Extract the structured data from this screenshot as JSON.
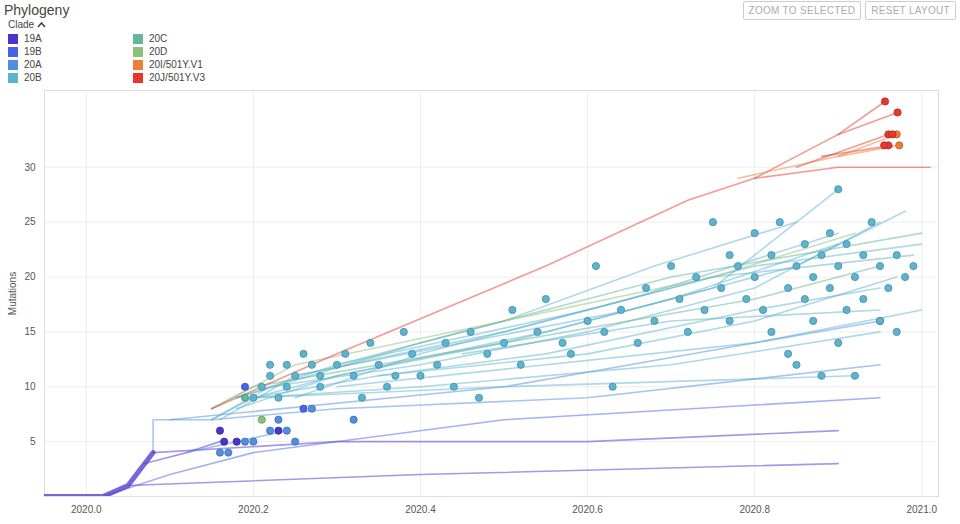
{
  "chart_data": {
    "type": "scatter",
    "title": "Phylogeny",
    "buttons": [
      "ZOOM TO SELECTED",
      "RESET LAYOUT"
    ],
    "legend_title": "Clade",
    "legend": "top-left",
    "grid": true,
    "y_label": "Mutations",
    "xlim": [
      2019.95,
      2021.02
    ],
    "xticks": [
      {
        "value": 2020,
        "label": "2020.0"
      },
      2020.2,
      2020.4,
      2020.6,
      2020.8,
      {
        "value": 2021,
        "label": "2021.0"
      }
    ],
    "ylim": [
      0,
      37
    ],
    "yticks": [
      5,
      10,
      15,
      20,
      25,
      30
    ],
    "series": [
      {
        "name": "19A",
        "color": "#4b33cc",
        "x": [
          2020.16,
          2020.165,
          2020.18,
          2020.23
        ],
        "values": [
          6,
          5,
          5,
          6
        ]
      },
      {
        "name": "19B",
        "color": "#4a63e6",
        "x": [
          2020.19,
          2020.26
        ],
        "values": [
          10,
          8
        ]
      },
      {
        "name": "20A",
        "color": "#4f8ee0",
        "x": [
          2020.16,
          2020.17,
          2020.19,
          2020.2,
          2020.22,
          2020.23,
          2020.24,
          2020.25,
          2020.27,
          2020.32,
          2020.95
        ],
        "values": [
          4,
          4,
          5,
          5,
          6,
          7,
          6,
          5,
          8,
          7,
          16
        ]
      },
      {
        "name": "20B",
        "color": "#5cb4d0",
        "x": [
          2020.2,
          2020.21,
          2020.22,
          2020.22,
          2020.23,
          2020.24,
          2020.24,
          2020.25,
          2020.26,
          2020.27,
          2020.28,
          2020.28,
          2020.3,
          2020.31,
          2020.32,
          2020.33,
          2020.34,
          2020.35,
          2020.36,
          2020.37,
          2020.38,
          2020.39,
          2020.4,
          2020.42,
          2020.43,
          2020.44,
          2020.46,
          2020.47,
          2020.48,
          2020.5,
          2020.51,
          2020.52,
          2020.54,
          2020.55,
          2020.57,
          2020.58,
          2020.6,
          2020.61,
          2020.62,
          2020.63,
          2020.64,
          2020.66,
          2020.67,
          2020.68,
          2020.7,
          2020.71,
          2020.72,
          2020.73,
          2020.74,
          2020.75,
          2020.76,
          2020.77,
          2020.77,
          2020.78,
          2020.79,
          2020.8,
          2020.8,
          2020.81,
          2020.82,
          2020.82,
          2020.83,
          2020.84,
          2020.84,
          2020.85,
          2020.85,
          2020.86,
          2020.86,
          2020.87,
          2020.87,
          2020.88,
          2020.88,
          2020.89,
          2020.89,
          2020.9,
          2020.9,
          2020.9,
          2020.91,
          2020.91,
          2020.92,
          2020.92,
          2020.93,
          2020.93,
          2020.94,
          2020.95,
          2020.95,
          2020.96,
          2020.97,
          2020.97,
          2020.98,
          2020.99
        ],
        "values": [
          9,
          10,
          11,
          12,
          9,
          10,
          12,
          11,
          13,
          12,
          11,
          10,
          12,
          13,
          11,
          9,
          14,
          12,
          10,
          11,
          15,
          13,
          11,
          12,
          14,
          10,
          15,
          9,
          13,
          14,
          17,
          12,
          15,
          18,
          14,
          13,
          16,
          21,
          15,
          10,
          17,
          14,
          19,
          16,
          21,
          18,
          15,
          20,
          17,
          25,
          19,
          22,
          16,
          21,
          18,
          20,
          24,
          17,
          22,
          15,
          25,
          19,
          13,
          21,
          12,
          23,
          18,
          20,
          16,
          22,
          11,
          19,
          24,
          28,
          21,
          14,
          17,
          23,
          20,
          11,
          22,
          18,
          25,
          16,
          21,
          19,
          22,
          15,
          20,
          21
        ]
      },
      {
        "name": "20C",
        "color": "#63b59b",
        "x": [
          2020.19
        ],
        "values": [
          9
        ]
      },
      {
        "name": "20D",
        "color": "#8cc17c",
        "x": [
          2020.21
        ],
        "values": [
          7
        ]
      },
      {
        "name": "20I/501Y.V1",
        "color": "#ec7f38",
        "x": [
          2020.973,
          2020.97
        ],
        "values": [
          32,
          33
        ]
      },
      {
        "name": "20J/501Y.V3",
        "color": "#e5372b",
        "x": [
          2020.956,
          2020.971,
          2020.96,
          2020.965,
          2020.96,
          2020.955
        ],
        "values": [
          36,
          35,
          33,
          33,
          32,
          32
        ]
      }
    ],
    "branches": [
      {
        "name": "19A",
        "x": [
          2019.95,
          2020.02,
          2020.05,
          2020.07,
          2020.08
        ],
        "values": [
          0,
          0,
          1,
          3,
          4
        ]
      },
      {
        "name": "19A",
        "x": [
          2020.07,
          2020.12,
          2020.16
        ],
        "values": [
          3,
          4,
          5
        ]
      },
      {
        "name": "19A",
        "x": [
          2020.08,
          2020.3,
          2020.6,
          2020.9
        ],
        "values": [
          4,
          5,
          5,
          6
        ]
      },
      {
        "name": "19A",
        "x": [
          2020.05,
          2020.4,
          2020.9
        ],
        "values": [
          1,
          2,
          3
        ]
      },
      {
        "name": "19B",
        "x": [
          2020.02,
          2020.1,
          2020.2,
          2020.5,
          2020.95
        ],
        "values": [
          0,
          2,
          4,
          7,
          9
        ]
      },
      {
        "name": "20A",
        "x": [
          2020.08,
          2020.08,
          2020.15
        ],
        "values": [
          4,
          7,
          7
        ]
      },
      {
        "name": "20A",
        "x": [
          2020.15,
          2020.3,
          2020.6,
          2020.95
        ],
        "values": [
          7,
          8,
          9,
          12
        ]
      },
      {
        "name": "20A",
        "x": [
          2020.12,
          2020.18,
          2020.24
        ],
        "values": [
          4,
          5,
          6
        ]
      },
      {
        "name": "20A",
        "x": [
          2020.1,
          2020.5,
          2020.95
        ],
        "values": [
          7,
          10,
          16
        ]
      },
      {
        "name": "20B",
        "x": [
          2020.15,
          2020.2,
          2020.3,
          2020.5,
          2020.7,
          2020.9
        ],
        "values": [
          7,
          9,
          11,
          14,
          18,
          23
        ]
      },
      {
        "name": "20B",
        "x": [
          2020.15,
          2020.22,
          2020.4,
          2020.6,
          2020.8,
          2020.95
        ],
        "values": [
          7,
          10,
          12,
          15,
          19,
          25
        ]
      },
      {
        "name": "20B",
        "x": [
          2020.16,
          2020.25,
          2020.45,
          2020.65,
          2020.85,
          2020.98
        ],
        "values": [
          7,
          11,
          14,
          17,
          21,
          26
        ]
      },
      {
        "name": "20B",
        "x": [
          2020.18,
          2020.3,
          2020.55,
          2020.75,
          2020.9
        ],
        "values": [
          8,
          11,
          15,
          19,
          28
        ]
      },
      {
        "name": "20B",
        "x": [
          2020.2,
          2020.35,
          2020.6,
          2020.8,
          2020.97
        ],
        "values": [
          9,
          11,
          13,
          16,
          20
        ]
      },
      {
        "name": "20B",
        "x": [
          2020.2,
          2020.4,
          2020.7,
          2020.95
        ],
        "values": [
          9,
          10,
          12,
          15
        ]
      },
      {
        "name": "20B",
        "x": [
          2020.2,
          2020.5,
          2020.92
        ],
        "values": [
          9,
          10,
          11
        ]
      },
      {
        "name": "20B",
        "x": [
          2020.25,
          2020.5,
          2020.75,
          2020.99
        ],
        "values": [
          11,
          15,
          20,
          22
        ]
      },
      {
        "name": "20B",
        "x": [
          2020.3,
          2020.6,
          2020.8,
          2021.0
        ],
        "values": [
          12,
          17,
          21,
          23
        ]
      },
      {
        "name": "20B",
        "x": [
          2020.18,
          2020.3,
          2020.5,
          2020.68,
          2020.85
        ],
        "values": [
          9,
          12,
          16,
          21,
          25
        ]
      },
      {
        "name": "20B",
        "x": [
          2020.35,
          2020.55,
          2020.8,
          2020.95
        ],
        "values": [
          11,
          13,
          17,
          19
        ]
      },
      {
        "name": "20B",
        "x": [
          2020.25,
          2020.4,
          2020.65,
          2020.9
        ],
        "values": [
          9,
          13,
          18,
          24
        ]
      },
      {
        "name": "20B",
        "x": [
          2020.45,
          2020.7,
          2020.95
        ],
        "values": [
          13,
          16,
          17
        ]
      },
      {
        "name": "20B",
        "x": [
          2020.3,
          2020.8,
          2021.0
        ],
        "values": [
          10,
          14,
          17
        ]
      },
      {
        "name": "20C",
        "x": [
          2020.15,
          2020.2,
          2020.5,
          2020.8,
          2020.95
        ],
        "values": [
          8,
          10,
          14,
          18,
          21
        ]
      },
      {
        "name": "20C",
        "x": [
          2020.18,
          2020.4,
          2020.7,
          2021.0
        ],
        "values": [
          9,
          14,
          20,
          24
        ]
      },
      {
        "name": "20D",
        "x": [
          2020.15,
          2020.25,
          2020.5,
          2020.75,
          2020.92
        ],
        "values": [
          8,
          12,
          16,
          20,
          24
        ]
      },
      {
        "name": "20J/501Y.V3",
        "x": [
          2020.15,
          2020.3,
          2020.55,
          2020.72,
          2020.8,
          2020.9,
          2020.956
        ],
        "values": [
          8,
          13,
          21,
          27,
          29,
          33,
          36
        ]
      },
      {
        "name": "20J/501Y.V3",
        "x": [
          2020.9,
          2020.971
        ],
        "values": [
          33,
          35
        ]
      },
      {
        "name": "20J/501Y.V3",
        "x": [
          2020.8,
          2020.9,
          2021.01
        ],
        "values": [
          29,
          30,
          30
        ]
      },
      {
        "name": "20J/501Y.V3",
        "x": [
          2020.85,
          2020.96
        ],
        "values": [
          30,
          33
        ]
      },
      {
        "name": "20J/501Y.V3",
        "x": [
          2020.88,
          2020.965
        ],
        "values": [
          31,
          32
        ]
      },
      {
        "name": "20I/501Y.V1",
        "x": [
          2020.78,
          2020.9,
          2020.97
        ],
        "values": [
          29,
          31,
          33
        ]
      },
      {
        "name": "20I/501Y.V1",
        "x": [
          2020.9,
          2020.973
        ],
        "values": [
          31,
          32
        ]
      }
    ]
  }
}
